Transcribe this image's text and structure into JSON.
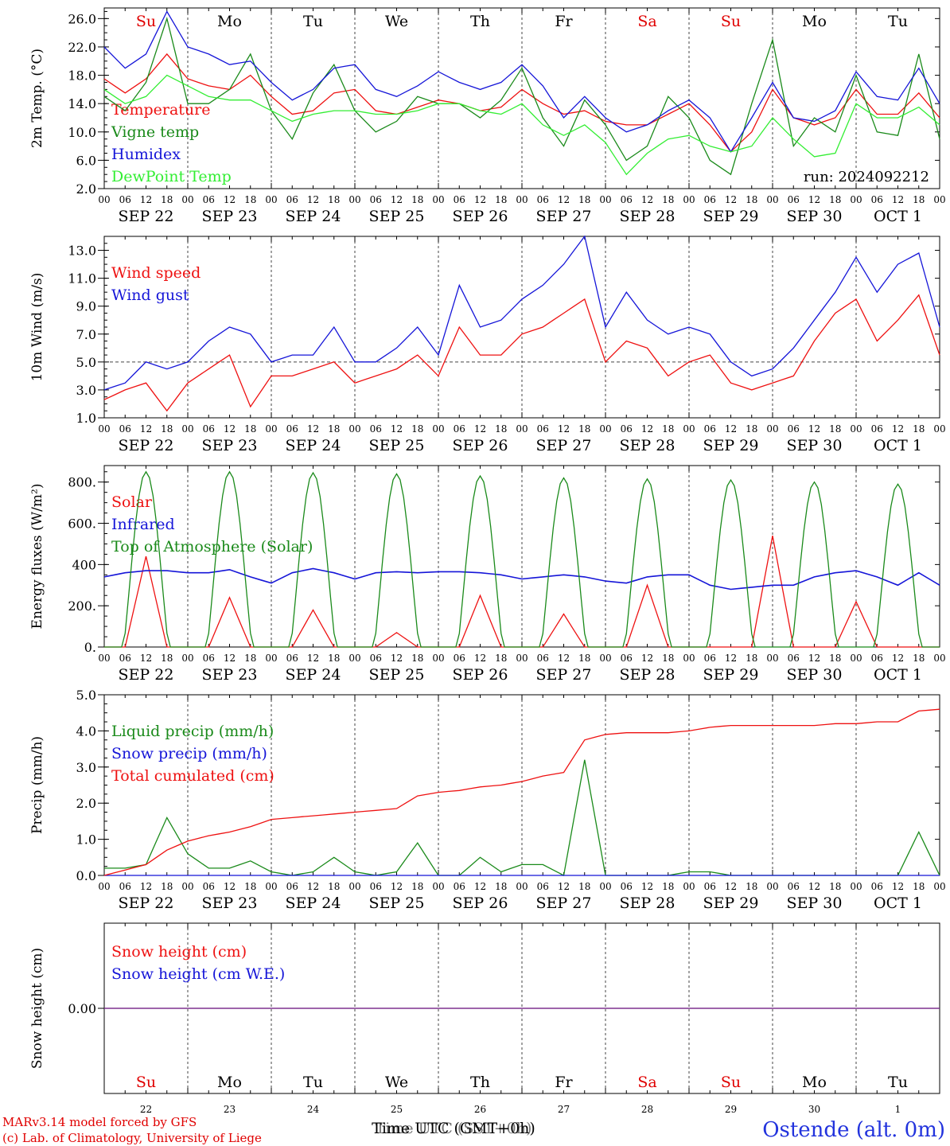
{
  "run_label": "run: 2024092212",
  "footer": {
    "credit1": "MARv3.14 model forced by GFS",
    "credit2": "(c) Lab. of Climatology, University of Liege",
    "xlabel_a": "Time UTC (GMT+0h)",
    "xlabel_b": "Time UTC (SST+0h)",
    "station": "Ostende (alt. 0m)"
  },
  "time_axis": {
    "days": 10,
    "hour_ticks": [
      "00",
      "06",
      "12",
      "18"
    ],
    "end_tick": "00",
    "day_labels": [
      "SEP 22",
      "SEP 23",
      "SEP 24",
      "SEP 25",
      "SEP 26",
      "SEP 27",
      "SEP 28",
      "SEP 29",
      "SEP 30",
      "OCT  1"
    ],
    "weekdays": [
      "Su",
      "Mo",
      "Tu",
      "We",
      "Th",
      "Fr",
      "Sa",
      "Su",
      "Mo",
      "Tu"
    ],
    "weekday_colors": [
      "#e00000",
      "#000000",
      "#000000",
      "#000000",
      "#000000",
      "#000000",
      "#e00000",
      "#e00000",
      "#000000",
      "#000000"
    ],
    "bottom_day_numbers": [
      "22",
      "23",
      "24",
      "25",
      "26",
      "27",
      "28",
      "29",
      "30",
      "1"
    ]
  },
  "colors": {
    "red": "#ee1111",
    "green": "#1a8a1a",
    "blue": "#1515d8",
    "lightgreen": "#33ee33",
    "purple": "#7a2a8a",
    "grid": "#444444"
  },
  "chart_data": [
    {
      "id": "temp",
      "type": "line",
      "ylabel": "2m Temp. (°C)",
      "ylim": [
        2,
        27.5
      ],
      "yticks": [
        2.0,
        6.0,
        10.0,
        14.0,
        18.0,
        22.0,
        26.0
      ],
      "ytick_labels": [
        "2.0",
        "6.0",
        "10.0",
        "14.0",
        "18.0",
        "22.0",
        "26.0"
      ],
      "x_hours": [
        0,
        6,
        12,
        18,
        24,
        30,
        36,
        42,
        48,
        54,
        60,
        66,
        72,
        78,
        84,
        90,
        96,
        102,
        108,
        114,
        120,
        126,
        132,
        138,
        144,
        150,
        156,
        162,
        168,
        174,
        180,
        186,
        192,
        198,
        204,
        210,
        216,
        222,
        228,
        234,
        240
      ],
      "series": [
        {
          "name": "Temperature",
          "color": "red",
          "values": [
            17.5,
            15.5,
            17.5,
            21.0,
            17.5,
            16.5,
            16.0,
            18.0,
            15.0,
            12.5,
            13.0,
            15.5,
            16.0,
            13.0,
            12.5,
            13.5,
            14.5,
            14.0,
            13.0,
            13.5,
            16.0,
            14.0,
            12.5,
            13.0,
            11.5,
            11.0,
            11.0,
            12.5,
            14.0,
            11.0,
            7.2,
            10.0,
            16.0,
            12.0,
            11.0,
            12.0,
            16.0,
            12.5,
            12.5,
            15.5,
            12.0
          ]
        },
        {
          "name": "Vigne temp",
          "color": "green",
          "values": [
            15.0,
            13.0,
            17.0,
            26.0,
            14.0,
            14.0,
            16.0,
            21.0,
            13.0,
            9.0,
            15.5,
            19.5,
            13.0,
            10.0,
            11.5,
            15.0,
            14.0,
            14.0,
            12.0,
            14.5,
            19.0,
            12.0,
            8.0,
            14.5,
            11.0,
            6.0,
            8.0,
            15.0,
            12.0,
            6.0,
            4.0,
            14.0,
            23.0,
            8.0,
            12.0,
            10.0,
            18.0,
            10.0,
            9.5,
            21.0,
            9.0
          ]
        },
        {
          "name": "Humidex",
          "color": "blue",
          "values": [
            22.0,
            19.0,
            21.0,
            27.0,
            22.0,
            21.0,
            19.5,
            20.0,
            17.0,
            14.5,
            16.0,
            19.0,
            19.5,
            16.0,
            15.0,
            16.5,
            18.5,
            17.0,
            16.0,
            17.0,
            19.5,
            16.5,
            12.0,
            15.0,
            12.0,
            10.0,
            11.0,
            13.0,
            14.5,
            12.0,
            7.2,
            12.0,
            17.0,
            12.0,
            11.5,
            13.0,
            18.5,
            15.0,
            14.5,
            19.0,
            14.0
          ]
        },
        {
          "name": "DewPoint Temp",
          "color": "lightgreen",
          "values": [
            16.0,
            14.0,
            15.0,
            18.0,
            16.5,
            15.0,
            14.5,
            14.5,
            13.0,
            11.5,
            12.5,
            13.0,
            13.0,
            12.5,
            12.5,
            13.0,
            14.0,
            14.0,
            13.0,
            12.5,
            14.0,
            11.0,
            9.5,
            11.0,
            8.5,
            4.0,
            7.0,
            9.0,
            9.5,
            8.0,
            7.2,
            8.0,
            12.0,
            9.0,
            6.5,
            7.0,
            14.0,
            12.0,
            12.0,
            13.5,
            11.0
          ]
        }
      ]
    },
    {
      "id": "wind",
      "type": "line",
      "ylabel": "10m Wind (m/s)",
      "ylim": [
        1,
        14
      ],
      "yticks": [
        1.0,
        3.0,
        5.0,
        7.0,
        9.0,
        11.0,
        13.0
      ],
      "ytick_labels": [
        "1.0",
        "3.0",
        "5.0",
        "7.0",
        "9.0",
        "11.0",
        "13.0"
      ],
      "reference_line": 5.0,
      "x_hours": [
        0,
        6,
        12,
        18,
        24,
        30,
        36,
        42,
        48,
        54,
        60,
        66,
        72,
        78,
        84,
        90,
        96,
        102,
        108,
        114,
        120,
        126,
        132,
        138,
        144,
        150,
        156,
        162,
        168,
        174,
        180,
        186,
        192,
        198,
        204,
        210,
        216,
        222,
        228,
        234,
        240
      ],
      "series": [
        {
          "name": "Wind speed",
          "color": "red",
          "values": [
            2.3,
            3.0,
            3.5,
            1.5,
            3.5,
            4.5,
            5.5,
            1.8,
            4.0,
            4.0,
            4.5,
            5.0,
            3.5,
            4.0,
            4.5,
            5.5,
            4.0,
            7.5,
            5.5,
            5.5,
            7.0,
            7.5,
            8.5,
            9.5,
            5.0,
            6.5,
            6.0,
            4.0,
            5.0,
            5.5,
            3.5,
            3.0,
            3.5,
            4.0,
            6.5,
            8.5,
            9.5,
            6.5,
            8.0,
            9.8,
            5.5
          ]
        },
        {
          "name": "Wind gust",
          "color": "blue",
          "values": [
            3.0,
            3.5,
            5.0,
            4.5,
            5.0,
            6.5,
            7.5,
            7.0,
            5.0,
            5.5,
            5.5,
            7.5,
            5.0,
            5.0,
            6.0,
            7.5,
            5.5,
            10.5,
            7.5,
            8.0,
            9.5,
            10.5,
            12.0,
            14.0,
            7.5,
            10.0,
            8.0,
            7.0,
            7.5,
            7.0,
            5.0,
            4.0,
            4.5,
            6.0,
            8.0,
            10.0,
            12.5,
            10.0,
            12.0,
            12.8,
            7.5
          ]
        }
      ]
    },
    {
      "id": "energy",
      "type": "line",
      "ylabel": "Energy fluxes (W/m²)",
      "ylim": [
        0,
        880
      ],
      "yticks": [
        0,
        200,
        400,
        600,
        800
      ],
      "ytick_labels": [
        "0.",
        "200.",
        "400",
        "600.",
        "800."
      ],
      "x_hours": [
        0,
        6,
        12,
        18,
        24,
        30,
        36,
        42,
        48,
        54,
        60,
        66,
        72,
        78,
        84,
        90,
        96,
        102,
        108,
        114,
        120,
        126,
        132,
        138,
        144,
        150,
        156,
        162,
        168,
        174,
        180,
        186,
        192,
        198,
        204,
        210,
        216,
        222,
        228,
        234,
        240
      ],
      "series": [
        {
          "name": "Solar",
          "color": "red",
          "values": [
            0,
            0,
            440,
            0,
            0,
            0,
            240,
            0,
            0,
            0,
            180,
            0,
            0,
            0,
            70,
            0,
            0,
            0,
            250,
            0,
            0,
            0,
            160,
            0,
            0,
            0,
            300,
            0,
            0,
            0,
            0,
            0,
            540,
            0,
            0,
            0,
            220,
            0,
            0,
            0,
            0
          ]
        },
        {
          "name": "Infrared",
          "color": "blue",
          "values": [
            340,
            360,
            370,
            370,
            360,
            360,
            375,
            340,
            310,
            360,
            380,
            360,
            330,
            360,
            365,
            360,
            365,
            365,
            360,
            350,
            330,
            340,
            350,
            340,
            320,
            310,
            340,
            350,
            350,
            300,
            280,
            290,
            300,
            300,
            340,
            360,
            370,
            340,
            300,
            360,
            300
          ]
        },
        {
          "name": "Top of Atmosphere (Solar)",
          "color": "green",
          "day_peaks": [
            850,
            850,
            845,
            840,
            830,
            820,
            815,
            810,
            800,
            790
          ]
        }
      ]
    },
    {
      "id": "precip",
      "type": "line",
      "ylabel": "Precip (mm/h)",
      "ylim": [
        0,
        5
      ],
      "yticks": [
        0.0,
        1.0,
        2.0,
        3.0,
        4.0,
        5.0
      ],
      "ytick_labels": [
        "0.0",
        "1.0",
        "2.0",
        "3.0",
        "4.0",
        "5.0"
      ],
      "x_hours": [
        0,
        6,
        12,
        18,
        24,
        30,
        36,
        42,
        48,
        54,
        60,
        66,
        72,
        78,
        84,
        90,
        96,
        102,
        108,
        114,
        120,
        126,
        132,
        138,
        144,
        150,
        156,
        162,
        168,
        174,
        180,
        186,
        192,
        198,
        204,
        210,
        216,
        222,
        228,
        234,
        240
      ],
      "series": [
        {
          "name": "Liquid precip (mm/h)",
          "color": "green",
          "values": [
            0.2,
            0.2,
            0.3,
            1.6,
            0.6,
            0.2,
            0.2,
            0.4,
            0.1,
            0.0,
            0.1,
            0.5,
            0.1,
            0.0,
            0.1,
            0.9,
            0.0,
            0.0,
            0.5,
            0.1,
            0.3,
            0.3,
            0.0,
            3.2,
            0.0,
            0.0,
            0.0,
            0.0,
            0.1,
            0.1,
            0.0,
            0.0,
            0.0,
            0.0,
            0.0,
            0.0,
            0.0,
            0.0,
            0.0,
            1.2,
            0.0
          ]
        },
        {
          "name": "Snow precip (mm/h)",
          "color": "blue",
          "values": [
            0,
            0,
            0,
            0,
            0,
            0,
            0,
            0,
            0,
            0,
            0,
            0,
            0,
            0,
            0,
            0,
            0,
            0,
            0,
            0,
            0,
            0,
            0,
            0,
            0,
            0,
            0,
            0,
            0,
            0,
            0,
            0,
            0,
            0,
            0,
            0,
            0,
            0,
            0,
            0,
            0
          ]
        },
        {
          "name": "Total cumulated (cm)",
          "color": "red",
          "values": [
            0.0,
            0.15,
            0.3,
            0.7,
            0.95,
            1.1,
            1.2,
            1.35,
            1.55,
            1.6,
            1.65,
            1.7,
            1.75,
            1.8,
            1.85,
            2.2,
            2.3,
            2.35,
            2.45,
            2.5,
            2.6,
            2.75,
            2.85,
            3.75,
            3.9,
            3.95,
            3.95,
            3.95,
            4.0,
            4.1,
            4.15,
            4.15,
            4.15,
            4.15,
            4.15,
            4.2,
            4.2,
            4.25,
            4.25,
            4.55,
            4.6
          ]
        }
      ]
    },
    {
      "id": "snow",
      "type": "line",
      "ylabel": "Snow height (cm)",
      "ylim": [
        -1,
        1
      ],
      "yticks": [
        0.0
      ],
      "ytick_labels": [
        "0.00"
      ],
      "x_hours": [
        0,
        240
      ],
      "series": [
        {
          "name": "Snow height (cm)",
          "color": "red",
          "values": [
            0,
            0
          ]
        },
        {
          "name": "Snow height (cm W.E.)",
          "color": "blue",
          "values": [
            0,
            0
          ]
        }
      ]
    }
  ]
}
